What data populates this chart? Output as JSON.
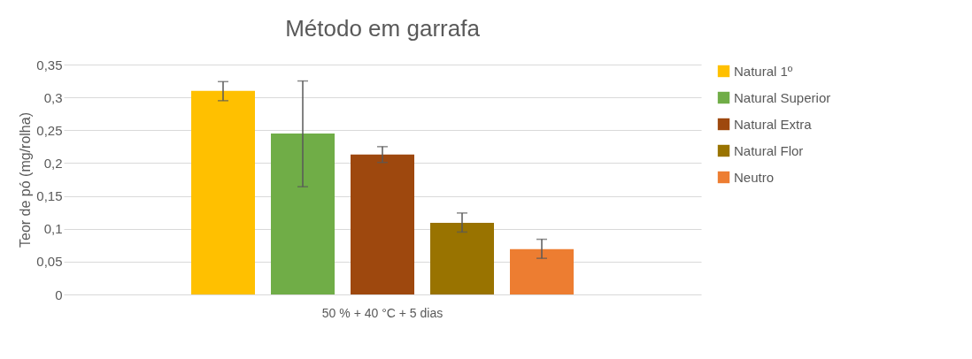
{
  "chart_data": {
    "type": "bar",
    "title": "Método em garrafa",
    "ylabel": "Teor de pó (mg/rolha)",
    "categories": [
      "50 % + 40 °C + 5 dias"
    ],
    "series": [
      {
        "name": "Natural 1º",
        "color": "#ffc000",
        "values": [
          0.31
        ],
        "errors": [
          [
            0.295,
            0.324
          ]
        ]
      },
      {
        "name": "Natural Superior",
        "color": "#70ad47",
        "values": [
          0.245
        ],
        "errors": [
          [
            0.164,
            0.325
          ]
        ]
      },
      {
        "name": "Natural Extra",
        "color": "#9e480e",
        "values": [
          0.213
        ],
        "errors": [
          [
            0.201,
            0.225
          ]
        ]
      },
      {
        "name": "Natural Flor",
        "color": "#997300",
        "values": [
          0.109
        ],
        "errors": [
          [
            0.095,
            0.124
          ]
        ]
      },
      {
        "name": "Neutro",
        "color": "#ed7d31",
        "values": [
          0.069
        ],
        "errors": [
          [
            0.055,
            0.084
          ]
        ]
      }
    ],
    "ylim": [
      0,
      0.35
    ],
    "yticks": [
      0,
      {
        "value": 0.05,
        "label": "0,05"
      },
      {
        "value": 0.1,
        "label": "0,1"
      },
      {
        "value": 0.15,
        "label": "0,15"
      },
      {
        "value": 0.2,
        "label": "0,2"
      },
      {
        "value": 0.25,
        "label": "0,25"
      },
      {
        "value": 0.3,
        "label": "0,3"
      },
      {
        "value": 0.35,
        "label": "0,35"
      }
    ],
    "grid": "y",
    "legend": "right"
  }
}
